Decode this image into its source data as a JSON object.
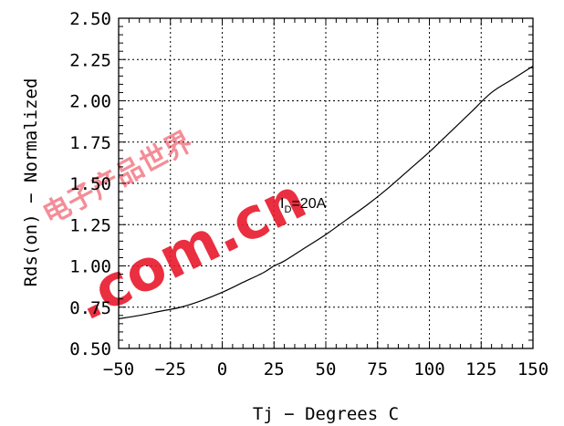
{
  "chart_data": {
    "type": "line",
    "title": "",
    "xlabel": "Tj − Degrees C",
    "ylabel": "Rds(on) − Normalized",
    "xlim": [
      -50,
      150
    ],
    "ylim": [
      0.5,
      2.5
    ],
    "xticks": [
      -50,
      -25,
      0,
      25,
      50,
      75,
      100,
      125,
      150
    ],
    "xtick_labels": [
      "−50",
      "−25",
      "0",
      "25",
      "50",
      "75",
      "100",
      "125",
      "150"
    ],
    "yticks": [
      0.5,
      0.75,
      1.0,
      1.25,
      1.5,
      1.75,
      2.0,
      2.25,
      2.5
    ],
    "ytick_labels": [
      "0.50",
      "0.75",
      "1.00",
      "1.25",
      "1.50",
      "1.75",
      "2.00",
      "2.25",
      "2.50"
    ],
    "grid": true,
    "grid_style": "dotted",
    "series": [
      {
        "x": [
          -50,
          -40,
          -30,
          -20,
          -10,
          0,
          10,
          20,
          25,
          30,
          40,
          50,
          60,
          70,
          80,
          90,
          100,
          110,
          120,
          130,
          140,
          150
        ],
        "y": [
          0.68,
          0.7,
          0.725,
          0.75,
          0.79,
          0.84,
          0.9,
          0.96,
          1.0,
          1.03,
          1.11,
          1.19,
          1.28,
          1.37,
          1.47,
          1.58,
          1.69,
          1.81,
          1.93,
          2.05,
          2.13,
          2.21
        ],
        "color": "#000000"
      }
    ],
    "annotations": [
      {
        "main": "I",
        "sub": "D",
        "rest": "=20A",
        "x": 28,
        "y": 1.35
      }
    ]
  },
  "watermark": {
    "text": ".com.cn",
    "chars": "电子产品世界",
    "color": "#e8192c"
  }
}
